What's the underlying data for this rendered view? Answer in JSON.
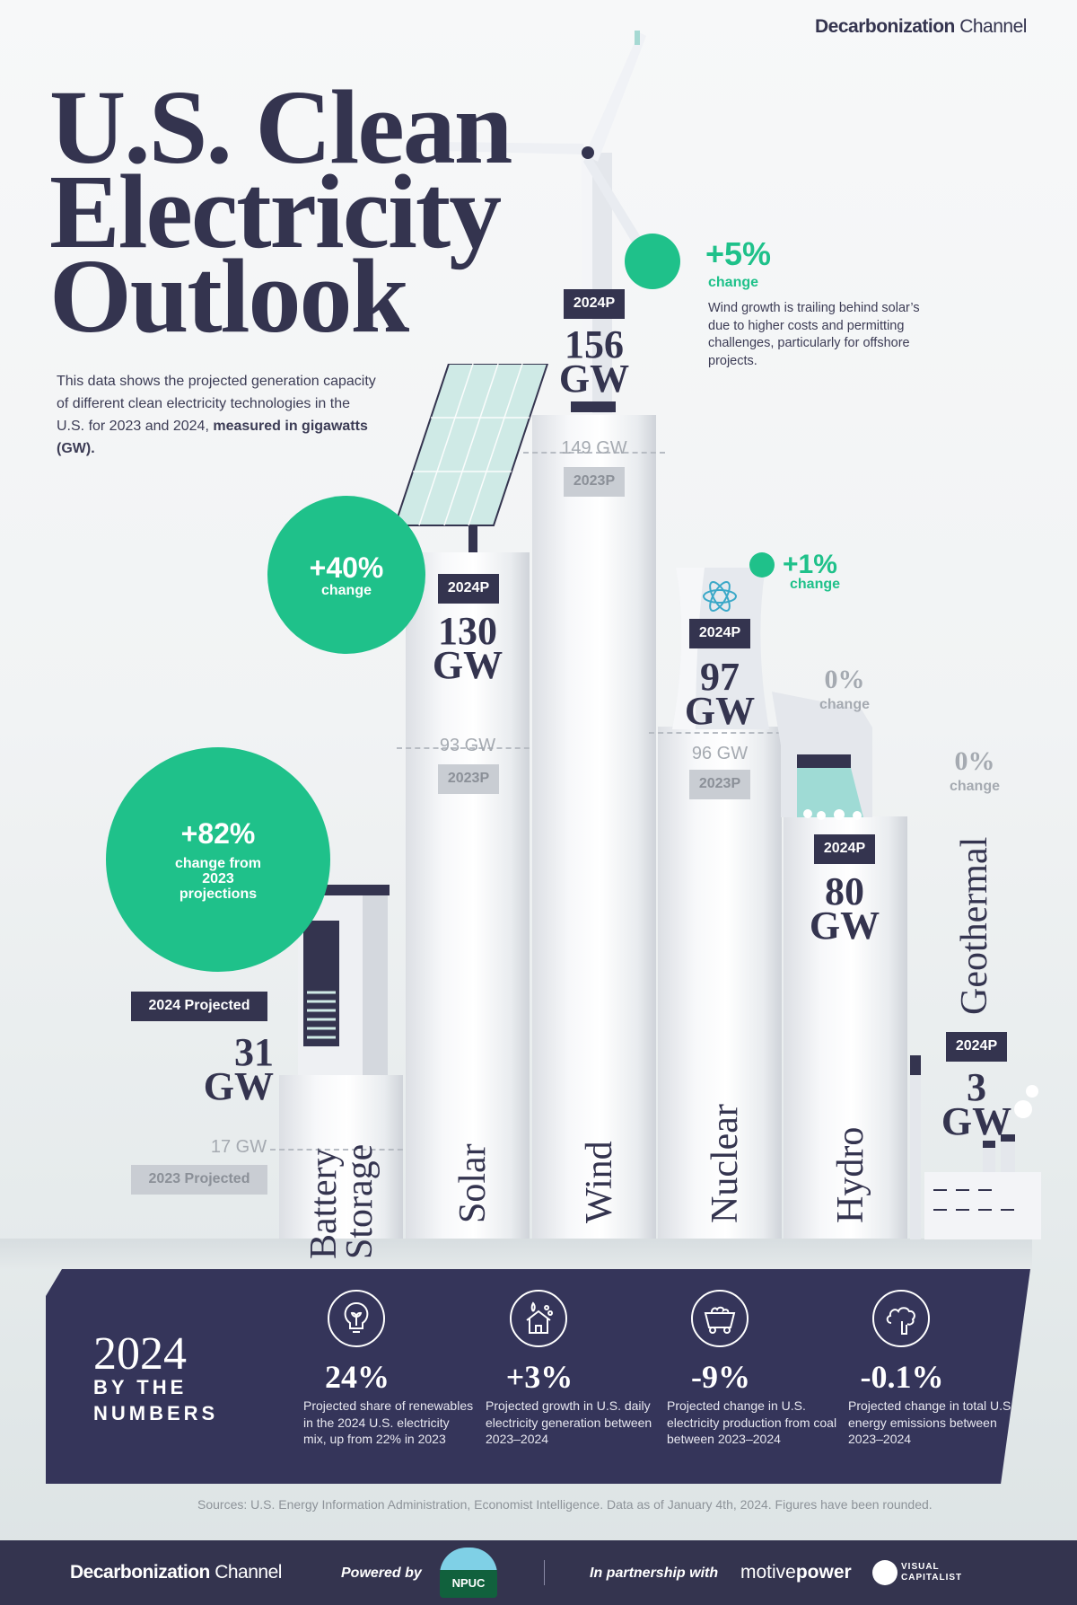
{
  "brand": {
    "name_bold": "Decarbonization",
    "name_light": "Channel"
  },
  "title": {
    "line1": "U.S. Clean",
    "line2": "Electricity",
    "line3": "Outlook"
  },
  "description": {
    "text": "This data shows the projected generation capacity of different clean electricity technologies in the U.S. for 2023 and 2024, ",
    "bold": "measured in gigawatts (GW)."
  },
  "colors": {
    "accent_green": "#1fc18a",
    "navy": "#34344f",
    "grey_label": "#c9cdd3"
  },
  "chart_data": {
    "type": "bar",
    "unit": "GW",
    "categories": [
      "Battery Storage",
      "Solar",
      "Wind",
      "Nuclear",
      "Hydro",
      "Geothermal"
    ],
    "series": [
      {
        "name": "2023 Projected",
        "values": [
          17,
          93,
          149,
          96,
          null,
          null
        ]
      },
      {
        "name": "2024 Projected",
        "values": [
          31,
          130,
          156,
          97,
          80,
          3
        ]
      }
    ],
    "change": [
      "+82%",
      "+40%",
      "+5%",
      "+1%",
      "0%",
      "0%"
    ],
    "labels": {
      "battery_2024_tag": "2024 Projected",
      "battery_2023_tag": "2023 Projected",
      "tag_2024": "2024P",
      "tag_2023": "2023P",
      "change_word": "change",
      "battery_change_note": "change from 2023 projections",
      "wind_note": "Wind growth is trailing behind solar’s due to higher costs and permitting challenges, particularly for offshore projects."
    },
    "value_labels_2024": [
      "31 GW",
      "130 GW",
      "156 GW",
      "97 GW",
      "80 GW",
      "3 GW"
    ],
    "value_labels_2023": [
      "17 GW",
      "93 GW",
      "149 GW",
      "96 GW"
    ]
  },
  "numbers": {
    "year": "2024",
    "heading": "BY THE NUMBERS",
    "stats": [
      {
        "icon": "lightbulb-leaf-icon",
        "value": "24%",
        "text": "Projected share of renewables in the 2024 U.S. electricity mix, up from 22% in 2023"
      },
      {
        "icon": "house-plant-icon",
        "value": "+3%",
        "text": "Projected growth in U.S. daily electricity generation between 2023–2024"
      },
      {
        "icon": "coal-cart-icon",
        "value": "-9%",
        "text": "Projected change in U.S. electricity production from coal between 2023–2024"
      },
      {
        "icon": "emissions-cloud-icon",
        "value": "-0.1%",
        "text": "Projected change in total U.S. energy emissions between 2023–2024"
      }
    ]
  },
  "sources": "Sources: U.S. Energy Information Administration, Economist Intelligence. Data as of January 4th, 2024. Figures have been rounded.",
  "footer": {
    "brand_bold": "Decarbonization",
    "brand_light": "Channel",
    "powered_by": "Powered by",
    "npuc": "NPUC",
    "partnership": "In partnership with",
    "motive": "motive",
    "power": "power",
    "vc1": "VISUAL",
    "vc2": "CAPITALIST"
  }
}
